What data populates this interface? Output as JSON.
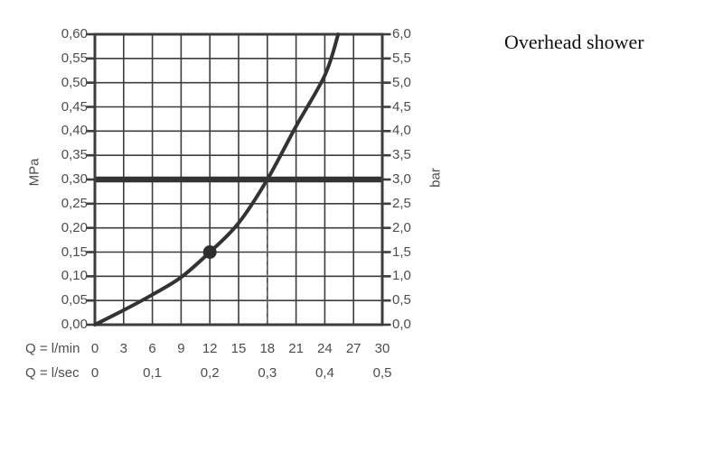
{
  "title": "Overhead shower",
  "chart_data": {
    "type": "line",
    "title": "Overhead shower",
    "grid": true,
    "x_axis": {
      "row1_label": "Q = l/min",
      "row1_ticks": [
        "0",
        "3",
        "6",
        "9",
        "12",
        "15",
        "18",
        "21",
        "24",
        "27",
        "30"
      ],
      "row1_range_lmin": [
        0,
        30
      ],
      "row2_label": "Q = l/sec",
      "row2_ticks": [
        "0",
        "0,1",
        "0,2",
        "0,3",
        "0,4",
        "0,5"
      ],
      "row2_range_lsec": [
        0,
        0.5
      ]
    },
    "y_axis_left": {
      "label": "MPa",
      "ticks": [
        "0,60",
        "0,55",
        "0,50",
        "0,45",
        "0,40",
        "0,35",
        "0,30",
        "0,25",
        "0,20",
        "0,15",
        "0,10",
        "0,05",
        "0,00"
      ],
      "range_mpa": [
        0,
        0.6
      ]
    },
    "y_axis_right": {
      "label": "bar",
      "ticks": [
        "6,0",
        "5,5",
        "5,0",
        "4,5",
        "4,0",
        "3,5",
        "3,0",
        "2,5",
        "2,0",
        "1,5",
        "1,0",
        "0,5",
        "0,0"
      ],
      "range_bar": [
        0,
        6
      ]
    },
    "series": [
      {
        "name": "flow-pressure-curve",
        "points_lmin_mpa": [
          [
            0,
            0
          ],
          [
            3,
            0.03
          ],
          [
            6,
            0.062
          ],
          [
            9,
            0.098
          ],
          [
            12,
            0.15
          ],
          [
            15,
            0.21
          ],
          [
            18,
            0.3
          ],
          [
            21,
            0.41
          ],
          [
            24,
            0.515
          ],
          [
            25.4,
            0.6
          ]
        ]
      }
    ],
    "annotations": {
      "pressure_line_mpa": 0.3,
      "dashed_line_lmin": 18,
      "marker_point_lmin_mpa": [
        12,
        0.15
      ]
    },
    "colors": {
      "curve": "#333333",
      "grid": "#3d3d3d",
      "frame": "#3d3d3d",
      "pressure_line": "#333333",
      "dashed_line": "#666666",
      "marker": "#2e2e2e",
      "tick_text": "#4d4d4d",
      "title_text": "#111111"
    }
  }
}
